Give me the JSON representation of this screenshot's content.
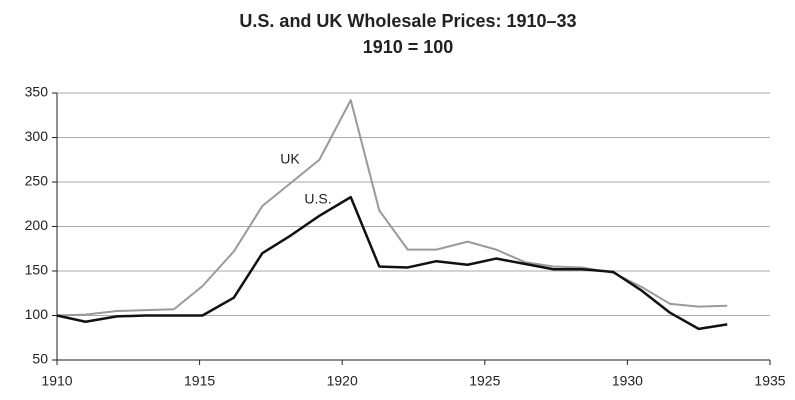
{
  "chart_data": {
    "type": "line",
    "title": "U.S. and UK Wholesale Prices: 1910–33",
    "subtitle": "1910 = 100",
    "x": [
      1910,
      1911,
      1912.1,
      1913.1,
      1914.1,
      1915.1,
      1916.2,
      1917.2,
      1918.2,
      1919.2,
      1920.3,
      1921.3,
      1922.3,
      1923.3,
      1924.4,
      1925.4,
      1926.4,
      1927.4,
      1928.4,
      1929.5,
      1930.5,
      1931.5,
      1932.5,
      1933.5
    ],
    "series": [
      {
        "name": "UK",
        "color": "#9a9a9a",
        "values": [
          100,
          101,
          105,
          106,
          107,
          133,
          172,
          223,
          249,
          275,
          342,
          218,
          174,
          174,
          183,
          174,
          160,
          155,
          154,
          148,
          132,
          113,
          110,
          111
        ]
      },
      {
        "name": "U.S.",
        "color": "#111111",
        "values": [
          100,
          93,
          99,
          100,
          100,
          100,
          120,
          170,
          190,
          212,
          233,
          155,
          154,
          161,
          157,
          164,
          158,
          152,
          152,
          149,
          128,
          103,
          85,
          90
        ]
      }
    ],
    "xlim": [
      1910,
      1935
    ],
    "xticks": [
      1910,
      1915,
      1920,
      1925,
      1930,
      1935
    ],
    "ylim": [
      50,
      350
    ],
    "yticks": [
      50,
      100,
      150,
      200,
      250,
      300,
      350
    ],
    "grid": true
  }
}
